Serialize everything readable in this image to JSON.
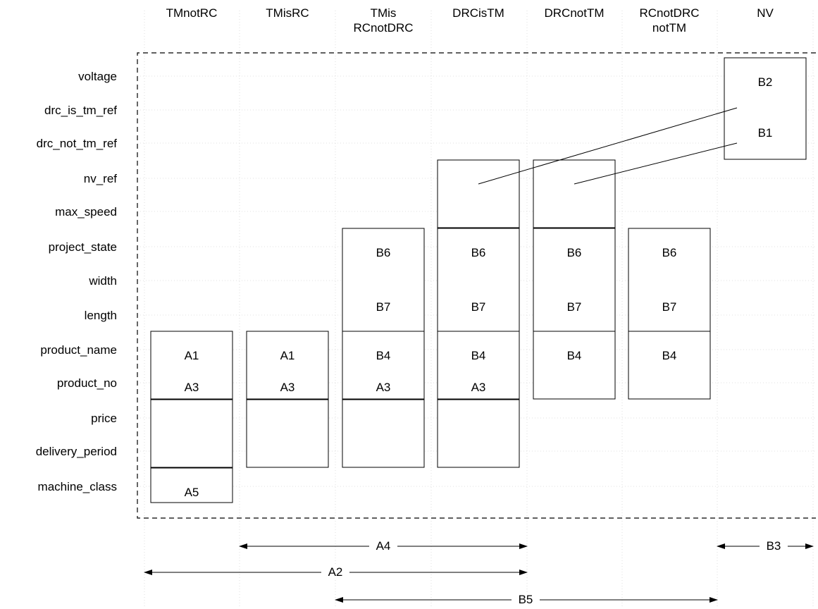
{
  "columns": [
    "TMnotRC",
    "TMisRC",
    "TMis RCnotDRC",
    "DRCisTM",
    "DRCnotTM",
    "RCnotDRC notTM",
    "NV"
  ],
  "column_lines": [
    [
      "TMnotRC"
    ],
    [
      "TMisRC"
    ],
    [
      "TMis",
      "RCnotDRC"
    ],
    [
      "DRCisTM"
    ],
    [
      "DRCnotTM"
    ],
    [
      "RCnotDRC",
      "notTM"
    ],
    [
      "NV"
    ]
  ],
  "rows": [
    "voltage",
    "drc_is_tm_ref",
    "drc_not_tm_ref",
    "nv_ref",
    "max_speed",
    "project_state",
    "width",
    "length",
    "product_name",
    "product_no",
    "price",
    "delivery_period",
    "machine_class"
  ],
  "boxes": [
    {
      "id": "nv-box",
      "col": 6,
      "row_start": 0,
      "row_end": 2,
      "labels": [
        {
          "text": "B2",
          "row": 0
        },
        {
          "text": "B1",
          "row": 1.5
        }
      ]
    },
    {
      "id": "ref-drcistm",
      "col": 3,
      "row_start": 3,
      "row_end": 4,
      "labels": []
    },
    {
      "id": "ref-drcnottm",
      "col": 4,
      "row_start": 3,
      "row_end": 4,
      "labels": []
    },
    {
      "id": "dims-tmis",
      "col": 2,
      "row_start": 5,
      "row_end": 7,
      "labels": [
        {
          "text": "B6",
          "row": 5
        },
        {
          "text": "B7",
          "row": 6.6
        }
      ]
    },
    {
      "id": "dims-drcistm",
      "col": 3,
      "row_start": 5,
      "row_end": 7,
      "labels": [
        {
          "text": "B6",
          "row": 5
        },
        {
          "text": "B7",
          "row": 6.6
        }
      ]
    },
    {
      "id": "dims-drcnottm",
      "col": 4,
      "row_start": 5,
      "row_end": 7,
      "labels": [
        {
          "text": "B6",
          "row": 5
        },
        {
          "text": "B7",
          "row": 6.6
        }
      ]
    },
    {
      "id": "dims-rcnotdrc",
      "col": 5,
      "row_start": 5,
      "row_end": 7,
      "labels": [
        {
          "text": "B6",
          "row": 5
        },
        {
          "text": "B7",
          "row": 6.6
        }
      ]
    },
    {
      "id": "prod-tmnotrc",
      "col": 0,
      "row_start": 8,
      "row_end": 9,
      "labels": [
        {
          "text": "A1",
          "row": 8
        },
        {
          "text": "A3",
          "row": 8.95
        }
      ]
    },
    {
      "id": "prod-tmisrc",
      "col": 1,
      "row_start": 8,
      "row_end": 9,
      "labels": [
        {
          "text": "A1",
          "row": 8
        },
        {
          "text": "A3",
          "row": 8.95
        }
      ]
    },
    {
      "id": "prod-tmis",
      "col": 2,
      "row_start": 8,
      "row_end": 9,
      "labels": [
        {
          "text": "B4",
          "row": 8
        },
        {
          "text": "A3",
          "row": 8.95
        }
      ]
    },
    {
      "id": "prod-drcistm",
      "col": 3,
      "row_start": 8,
      "row_end": 9,
      "labels": [
        {
          "text": "B4",
          "row": 8
        },
        {
          "text": "A3",
          "row": 8.95
        }
      ]
    },
    {
      "id": "prod-drcnottm",
      "col": 4,
      "row_start": 8,
      "row_end": 9,
      "labels": [
        {
          "text": "B4",
          "row": 8
        }
      ]
    },
    {
      "id": "prod-rcnotdrc",
      "col": 5,
      "row_start": 8,
      "row_end": 9,
      "labels": [
        {
          "text": "B4",
          "row": 8
        }
      ]
    },
    {
      "id": "price-tmnotrc",
      "col": 0,
      "row_start": 10,
      "row_end": 11,
      "labels": []
    },
    {
      "id": "price-tmisrc",
      "col": 1,
      "row_start": 10,
      "row_end": 11,
      "labels": []
    },
    {
      "id": "price-tmis",
      "col": 2,
      "row_start": 10,
      "row_end": 11,
      "labels": []
    },
    {
      "id": "price-drcistm",
      "col": 3,
      "row_start": 10,
      "row_end": 11,
      "labels": []
    },
    {
      "id": "class-tmnotrc",
      "col": 0,
      "row_start": 12,
      "row_end": 12,
      "labels": [
        {
          "text": "A5",
          "row": 12
        }
      ]
    }
  ],
  "reference_lines": [
    {
      "from_box": "ref-drcistm",
      "to_label": "B2-B1 gap"
    },
    {
      "from_box": "ref-drcnottm",
      "to_label": "B1"
    }
  ],
  "spans": [
    {
      "label": "A4",
      "from_col": 1,
      "to_col": 3
    },
    {
      "label": "B3",
      "from_col": 6,
      "to_col": 6
    },
    {
      "label": "A2",
      "from_col": 0,
      "to_col": 3
    },
    {
      "label": "B5",
      "from_col": 2,
      "to_col": 6
    }
  ]
}
